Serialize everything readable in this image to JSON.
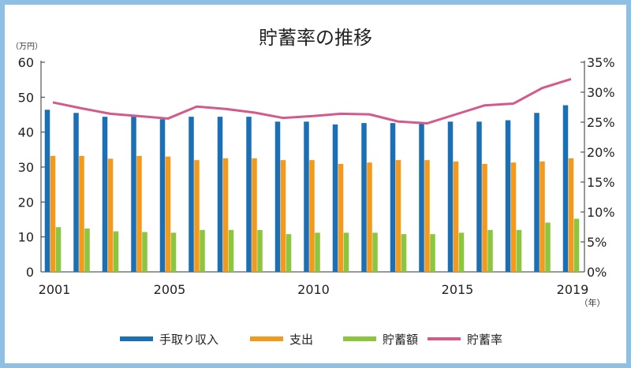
{
  "chart_data": {
    "type": "bar",
    "title": "貯蓄率の推移",
    "y_unit": "（万円）",
    "x_unit": "（年）",
    "x_tick_labels": [
      "2001",
      "2005",
      "2010",
      "2015",
      "2019"
    ],
    "left_ticks": [
      "60",
      "50",
      "40",
      "30",
      "20",
      "10",
      "0"
    ],
    "right_ticks": [
      "35%",
      "30%",
      "25%",
      "20%",
      "15%",
      "10%",
      "5%",
      "0%"
    ],
    "ylim_left": [
      0,
      60
    ],
    "ylim_right": [
      0,
      35
    ],
    "grid": false,
    "legend_position": "bottom",
    "x": [
      2001,
      2002,
      2003,
      2004,
      2005,
      2006,
      2007,
      2008,
      2009,
      2010,
      2011,
      2012,
      2013,
      2014,
      2015,
      2016,
      2017,
      2018,
      2019
    ],
    "series": [
      {
        "name": "手取り収入",
        "type": "bar",
        "axis": "left",
        "color": "#1a6fb5",
        "values": [
          46.4,
          45.5,
          44.4,
          44.4,
          43.7,
          44.4,
          44.4,
          44.4,
          43.0,
          43.0,
          42.2,
          42.6,
          42.6,
          42.6,
          43.0,
          43.0,
          43.4,
          45.5,
          47.7
        ]
      },
      {
        "name": "支出",
        "type": "bar",
        "axis": "left",
        "color": "#f39a1c",
        "values": [
          33.2,
          33.2,
          32.4,
          33.2,
          33.0,
          32.0,
          32.5,
          32.5,
          32.0,
          32.0,
          30.9,
          31.3,
          32.0,
          32.0,
          31.6,
          30.9,
          31.3,
          31.6,
          32.5
        ]
      },
      {
        "name": "貯蓄額",
        "type": "bar",
        "axis": "left",
        "color": "#8cc63f",
        "values": [
          12.8,
          12.4,
          11.6,
          11.4,
          11.2,
          12.0,
          12.0,
          12.0,
          10.8,
          11.2,
          11.2,
          11.2,
          10.8,
          10.8,
          11.2,
          12.0,
          12.0,
          14.1,
          15.2
        ]
      },
      {
        "name": "貯蓄率",
        "type": "line",
        "axis": "right",
        "color": "#d45a8c",
        "values": [
          28.3,
          27.3,
          26.4,
          26.0,
          25.6,
          27.6,
          27.2,
          26.6,
          25.7,
          26.0,
          26.4,
          26.3,
          25.1,
          24.8,
          26.3,
          27.8,
          28.1,
          30.7,
          32.2
        ]
      }
    ]
  }
}
